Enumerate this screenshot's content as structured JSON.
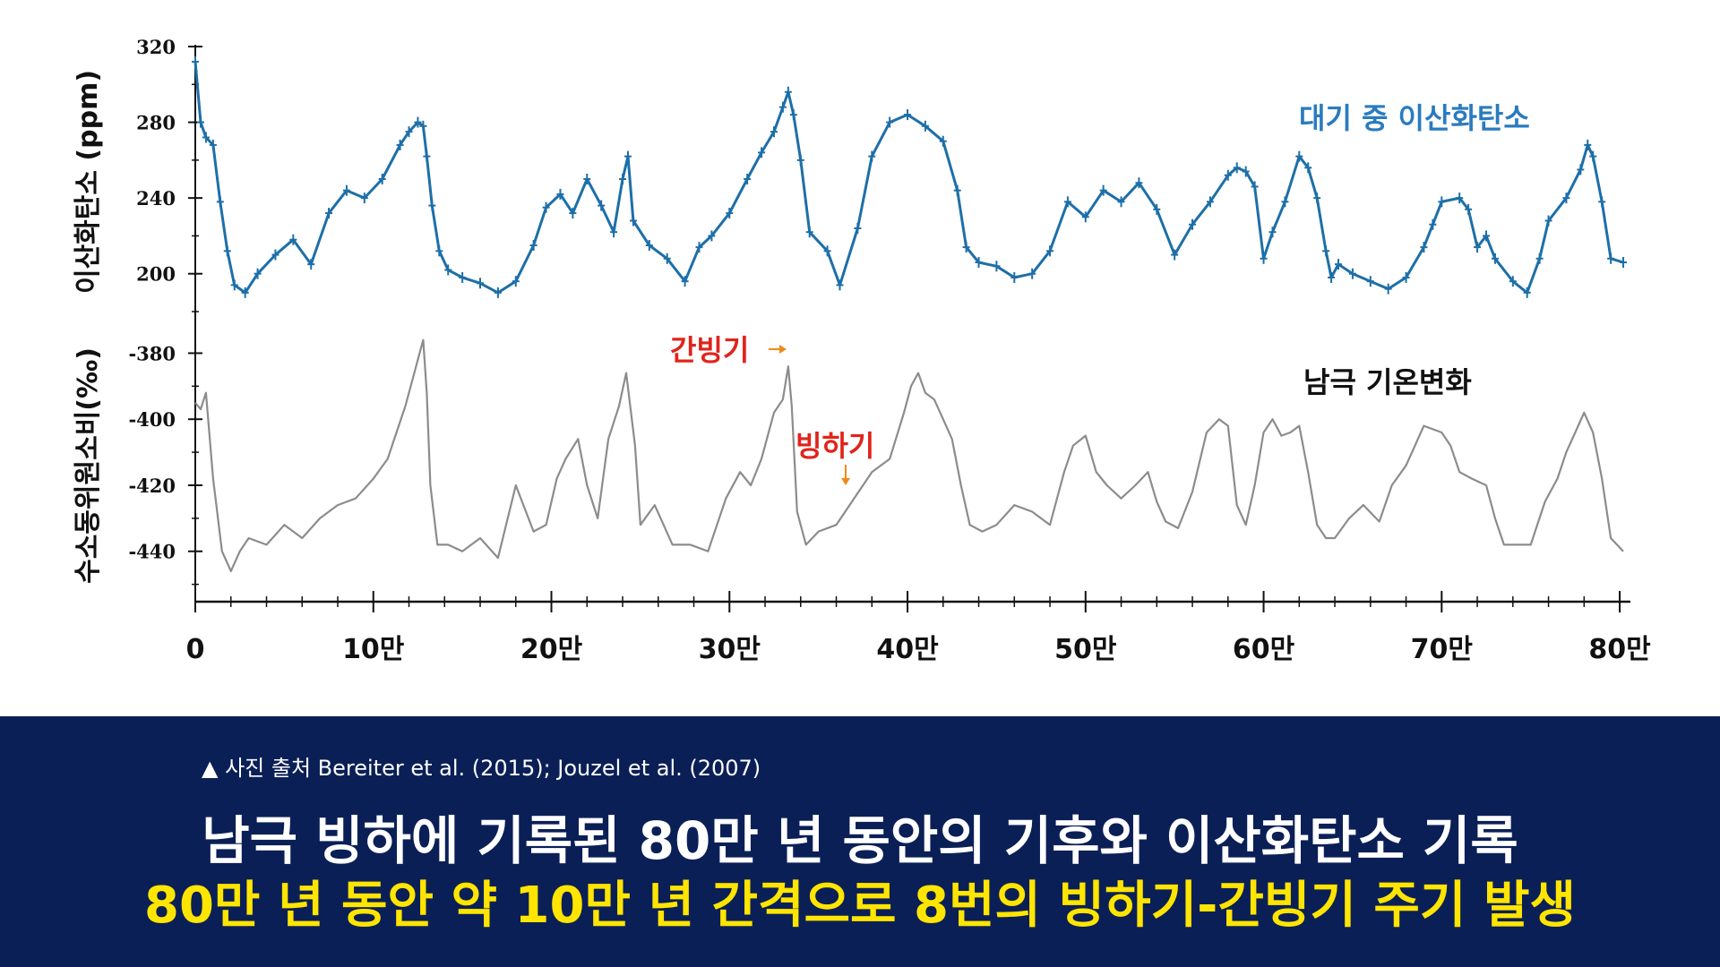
{
  "chart_data": {
    "type": "line",
    "x_unit_label": "",
    "x_ticks": [
      {
        "value": 0,
        "label": "0"
      },
      {
        "value": 100000,
        "label": "10만"
      },
      {
        "value": 200000,
        "label": "20만"
      },
      {
        "value": 300000,
        "label": "30만"
      },
      {
        "value": 400000,
        "label": "40만"
      },
      {
        "value": 500000,
        "label": "50만"
      },
      {
        "value": 600000,
        "label": "60만"
      },
      {
        "value": 700000,
        "label": "70만"
      },
      {
        "value": 800000,
        "label": "80만"
      }
    ],
    "xlim": [
      0,
      805000
    ],
    "co2_axis": {
      "label": "이산화탄소 (ppm)",
      "ticks": [
        200,
        240,
        280,
        320
      ],
      "tick_labels": [
        "200",
        "240",
        "280",
        "320"
      ],
      "ylim": [
        180,
        320
      ]
    },
    "temp_axis": {
      "label": "수소동위원소비(‰)",
      "ticks": [
        -380,
        -400,
        -420,
        -440
      ],
      "tick_labels": [
        "-380",
        "-400",
        "-420",
        "-440"
      ],
      "ylim": [
        -452,
        -375
      ]
    },
    "series": [
      {
        "name": "대기 중 이산화탄소",
        "axis": "co2",
        "color": "#1d6fa8",
        "label_color": "#2a7bbf",
        "x": [
          0,
          3000,
          6000,
          10000,
          14000,
          18000,
          22000,
          28000,
          35000,
          45000,
          55000,
          65000,
          75000,
          85000,
          95000,
          105000,
          115000,
          120000,
          125000,
          128000,
          130000,
          133000,
          137000,
          142000,
          150000,
          160000,
          170000,
          180000,
          190000,
          197000,
          205000,
          212000,
          220000,
          228000,
          235000,
          240000,
          243000,
          246000,
          255000,
          265000,
          275000,
          283000,
          290000,
          300000,
          310000,
          318000,
          325000,
          330000,
          333000,
          336000,
          340000,
          345000,
          355000,
          362000,
          372000,
          380000,
          390000,
          400000,
          410000,
          420000,
          428000,
          433000,
          440000,
          450000,
          460000,
          470000,
          480000,
          490000,
          500000,
          510000,
          520000,
          530000,
          540000,
          550000,
          560000,
          570000,
          580000,
          585000,
          590000,
          595000,
          600000,
          605000,
          612000,
          620000,
          625000,
          630000,
          635000,
          638000,
          642000,
          650000,
          660000,
          670000,
          680000,
          690000,
          695000,
          700000,
          710000,
          715000,
          720000,
          725000,
          730000,
          740000,
          748000,
          755000,
          760000,
          770000,
          778000,
          782000,
          785000,
          790000,
          795000,
          802000
        ],
        "values": [
          312,
          280,
          272,
          268,
          238,
          212,
          194,
          190,
          200,
          210,
          218,
          205,
          232,
          244,
          240,
          250,
          268,
          275,
          280,
          278,
          262,
          236,
          212,
          202,
          198,
          195,
          190,
          196,
          215,
          235,
          242,
          232,
          250,
          236,
          222,
          250,
          262,
          228,
          215,
          208,
          196,
          214,
          220,
          232,
          250,
          264,
          275,
          288,
          296,
          284,
          260,
          222,
          212,
          194,
          224,
          262,
          280,
          284,
          278,
          270,
          244,
          214,
          206,
          204,
          198,
          200,
          212,
          238,
          230,
          244,
          238,
          248,
          234,
          210,
          226,
          238,
          252,
          256,
          254,
          246,
          208,
          222,
          238,
          262,
          256,
          240,
          212,
          198,
          205,
          200,
          196,
          192,
          198,
          214,
          226,
          238,
          240,
          234,
          214,
          220,
          208,
          196,
          190,
          208,
          228,
          240,
          255,
          268,
          262,
          238,
          208,
          206
        ]
      },
      {
        "name": "남극 기온변화",
        "axis": "temp",
        "color": "#8c8c8c",
        "label_color": "#111111",
        "x": [
          0,
          3000,
          6000,
          10000,
          15000,
          20000,
          25000,
          30000,
          40000,
          50000,
          60000,
          70000,
          80000,
          90000,
          100000,
          108000,
          113000,
          118000,
          122000,
          126000,
          128000,
          130000,
          132000,
          136000,
          142000,
          150000,
          160000,
          170000,
          180000,
          190000,
          197000,
          203000,
          208000,
          215000,
          220000,
          226000,
          232000,
          238000,
          242000,
          247000,
          250000,
          258000,
          268000,
          278000,
          288000,
          298000,
          306000,
          312000,
          318000,
          325000,
          330000,
          333000,
          335000,
          338000,
          343000,
          350000,
          360000,
          370000,
          380000,
          390000,
          398000,
          402000,
          406000,
          410000,
          415000,
          420000,
          425000,
          430000,
          435000,
          442000,
          450000,
          460000,
          470000,
          480000,
          488000,
          493000,
          500000,
          506000,
          512000,
          520000,
          528000,
          535000,
          540000,
          545000,
          552000,
          560000,
          568000,
          575000,
          580000,
          585000,
          590000,
          595000,
          600000,
          605000,
          610000,
          615000,
          620000,
          625000,
          630000,
          635000,
          640000,
          648000,
          656000,
          665000,
          672000,
          680000,
          690000,
          700000,
          705000,
          710000,
          717000,
          725000,
          730000,
          735000,
          740000,
          750000,
          758000,
          765000,
          770000,
          775000,
          780000,
          785000,
          790000,
          795000,
          802000
        ],
        "values": [
          -395,
          -397,
          -392,
          -418,
          -440,
          -446,
          -440,
          -436,
          -438,
          -432,
          -436,
          -430,
          -426,
          -424,
          -418,
          -412,
          -404,
          -396,
          -388,
          -380,
          -376,
          -392,
          -420,
          -438,
          -438,
          -440,
          -436,
          -442,
          -420,
          -434,
          -432,
          -418,
          -412,
          -406,
          -420,
          -430,
          -406,
          -396,
          -386,
          -408,
          -432,
          -426,
          -438,
          -438,
          -440,
          -424,
          -416,
          -420,
          -412,
          -398,
          -394,
          -384,
          -396,
          -428,
          -438,
          -434,
          -432,
          -424,
          -416,
          -412,
          -398,
          -390,
          -386,
          -392,
          -394,
          -400,
          -406,
          -420,
          -432,
          -434,
          -432,
          -426,
          -428,
          -432,
          -416,
          -408,
          -405,
          -416,
          -420,
          -424,
          -420,
          -416,
          -425,
          -431,
          -433,
          -422,
          -404,
          -400,
          -402,
          -426,
          -432,
          -420,
          -404,
          -400,
          -405,
          -404,
          -402,
          -416,
          -432,
          -436,
          -436,
          -430,
          -426,
          -431,
          -420,
          -414,
          -402,
          -404,
          -408,
          -416,
          -418,
          -420,
          -430,
          -438,
          -438,
          -438,
          -425,
          -418,
          -410,
          -404,
          -398,
          -404,
          -418,
          -436,
          -440
        ]
      }
    ],
    "annotations": [
      {
        "text": "간빙기",
        "color": "#e0241b",
        "arrow_color": "#f08a16"
      },
      {
        "text": "빙하기",
        "color": "#e0241b",
        "arrow_color": "#f08a16"
      }
    ]
  },
  "caption": {
    "source": "▲ 사진 출처 Bereiter et al. (2015); Jouzel et al. (2007)",
    "title": "남극 빙하에 기록된 80만 년 동안의 기후와 이산화탄소 기록",
    "subtitle": "80만 년 동안 약 10만 년 간격으로 8번의 빙하기-간빙기 주기 발생"
  },
  "colors": {
    "panel_background": "#0b1f57",
    "caption_title": "#ffffff",
    "caption_subtitle": "#ffe500"
  }
}
